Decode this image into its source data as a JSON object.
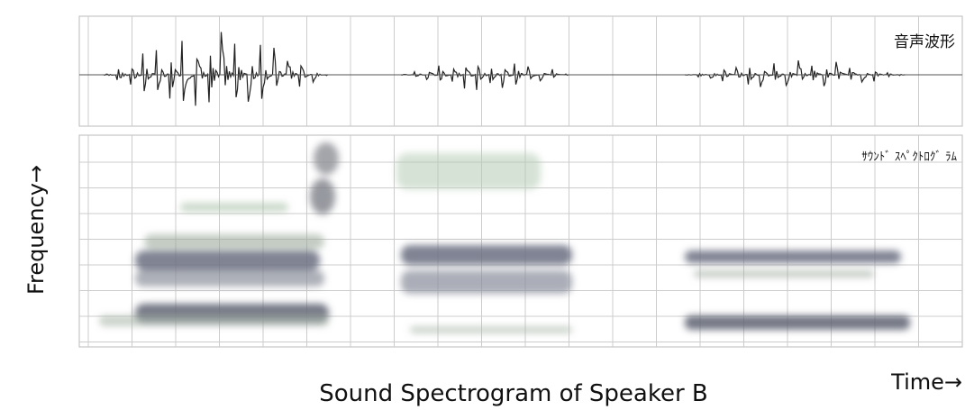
{
  "figure": {
    "waveform_label": "音声波形",
    "spectrogram_label": "ｻｳﾝﾄﾞ ｽﾍﾟｸﾄﾛｸﾞ ﾗﾑ",
    "y_axis_label": "Frequency→",
    "x_axis_label": "Time→",
    "caption": "Sound Spectrogram of Speaker B"
  }
}
